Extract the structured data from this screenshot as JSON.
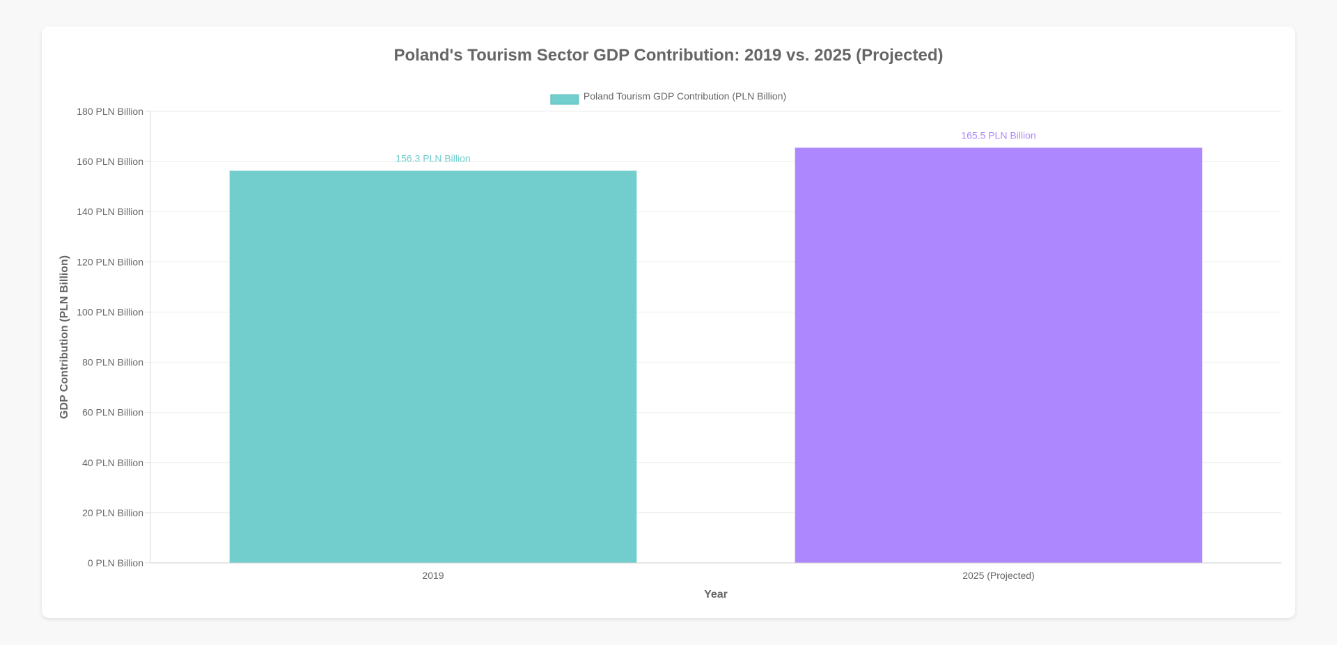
{
  "chart_data": {
    "type": "bar",
    "title": "Poland's Tourism Sector GDP Contribution: 2019 vs. 2025 (Projected)",
    "categories": [
      "2019",
      "2025 (Projected)"
    ],
    "series": [
      {
        "name": "Poland Tourism GDP Contribution (PLN Billion)",
        "values": [
          156.3,
          165.5
        ],
        "colors": [
          "#72cdcd",
          "#ad87fe"
        ],
        "data_labels": [
          "156.3 PLN Billion",
          "165.5 PLN Billion"
        ]
      }
    ],
    "xlabel": "Year",
    "ylabel": "GDP Contribution (PLN Billion)",
    "ylim": [
      0,
      180
    ],
    "yticks": [
      0,
      20,
      40,
      60,
      80,
      100,
      120,
      140,
      160,
      180
    ],
    "ytick_labels": [
      "0 PLN Billion",
      "20 PLN Billion",
      "40 PLN Billion",
      "60 PLN Billion",
      "80 PLN Billion",
      "100 PLN Billion",
      "120 PLN Billion",
      "140 PLN Billion",
      "160 PLN Billion",
      "180 PLN Billion"
    ],
    "grid": true,
    "legend_position": "top-center"
  }
}
